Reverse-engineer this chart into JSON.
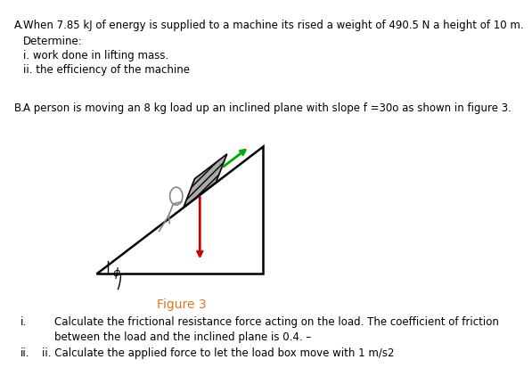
{
  "bg_color": "#ffffff",
  "line1": "A.   When 7.85 kJ of energy is supplied to a machine its rised a weight of 490.5 N a height of 10 m.",
  "line2": "      Determine:",
  "line3": "      i. work done in lifting mass.",
  "line4": "      ii. the efficiency of the machine",
  "line5": "B.   A person is moving an 8 kg load up an inclined plane with slope f =30o as shown in figure 3.",
  "figure_caption": "Figure 3",
  "text_i_label": "i.",
  "text_i_content": "Calculate the frictional resistance force acting on the load. The coefficient of friction",
  "text_i_content2": "between the load and the inclined plane is 0.4. –",
  "text_ii_label": "ii.",
  "text_ii_content": "ii. Calculate the applied force to let the load box move with 1 m/s2",
  "arrow_green_color": "#00aa00",
  "arrow_red_color": "#cc0000",
  "phi_label": "ϕ",
  "figure_caption_color": "#e07820"
}
